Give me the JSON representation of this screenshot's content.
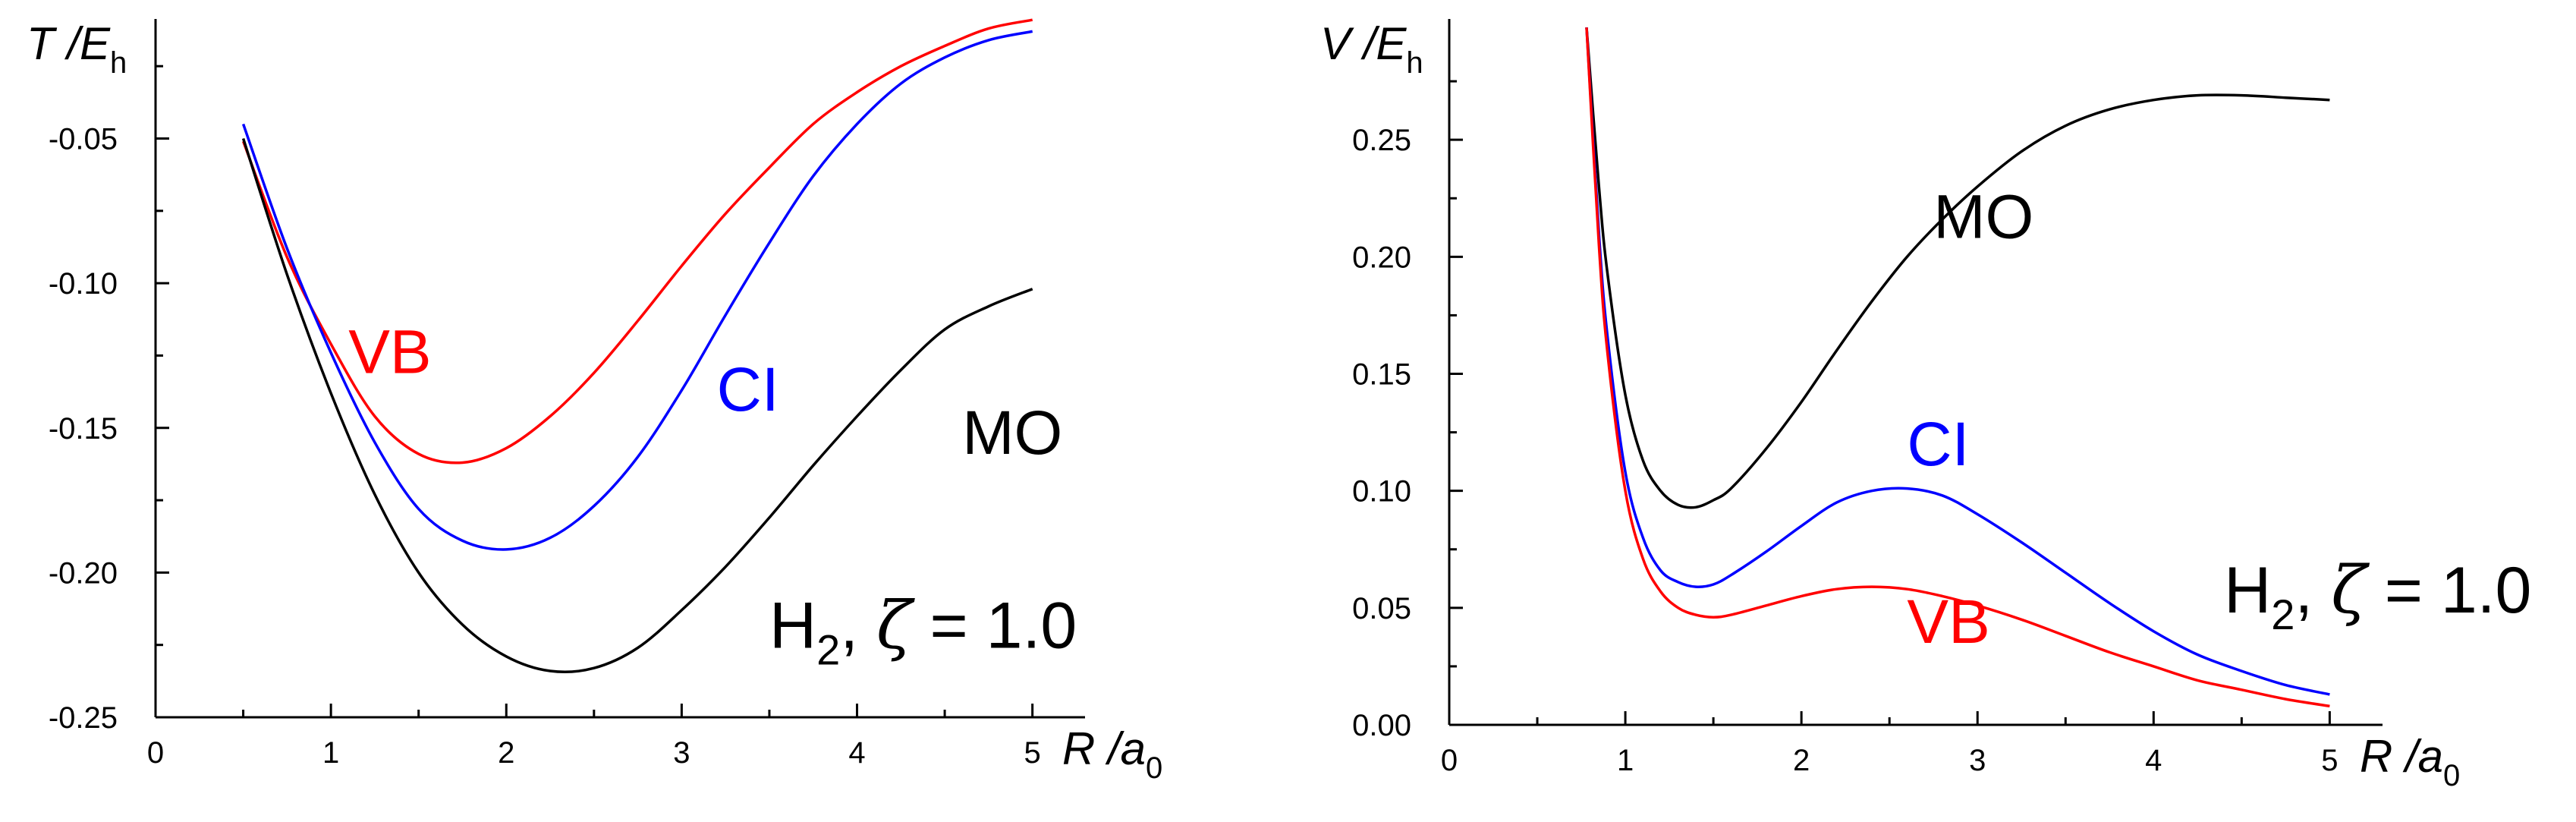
{
  "chart_data": [
    {
      "type": "line",
      "id": "kinetic",
      "xlabel": "R /a0",
      "x_axis": {
        "var": "R",
        "unit": "a",
        "unit_sub": "0"
      },
      "y_axis": {
        "var": "T",
        "unit": "E",
        "unit_sub": "h"
      },
      "xlim": [
        0,
        5.3
      ],
      "ylim": [
        -0.25,
        -0.01
      ],
      "x_major_ticks": [
        0,
        1,
        2,
        3,
        4,
        5
      ],
      "x_tick_labels": [
        "0",
        "1",
        "2",
        "3",
        "4",
        "5"
      ],
      "y_major_ticks": [
        -0.25,
        -0.2,
        -0.15,
        -0.1,
        -0.05
      ],
      "y_tick_labels": [
        "-0.25",
        "-0.20",
        "-0.15",
        "-0.10",
        "-0.05"
      ],
      "series": [
        {
          "name": "VB",
          "color": "#ff0000",
          "x": [
            0.5,
            0.75,
            1.0,
            1.25,
            1.5,
            1.75,
            2.0,
            2.25,
            2.5,
            2.75,
            3.0,
            3.25,
            3.5,
            3.75,
            4.0,
            4.25,
            4.5,
            4.75,
            5.0
          ],
          "y": [
            -0.051,
            -0.091,
            -0.121,
            -0.146,
            -0.159,
            -0.162,
            -0.157,
            -0.146,
            -0.131,
            -0.113,
            -0.094,
            -0.076,
            -0.06,
            -0.045,
            -0.034,
            -0.025,
            -0.018,
            -0.012,
            -0.009
          ]
        },
        {
          "name": "CI",
          "color": "#0000ff",
          "x": [
            0.5,
            0.75,
            1.0,
            1.25,
            1.5,
            1.75,
            2.0,
            2.25,
            2.5,
            2.75,
            3.0,
            3.25,
            3.5,
            3.75,
            4.0,
            4.25,
            4.5,
            4.75,
            5.0
          ],
          "y": [
            -0.045,
            -0.088,
            -0.124,
            -0.155,
            -0.178,
            -0.189,
            -0.192,
            -0.188,
            -0.177,
            -0.16,
            -0.137,
            -0.111,
            -0.086,
            -0.063,
            -0.045,
            -0.031,
            -0.022,
            -0.016,
            -0.013
          ]
        },
        {
          "name": "MO",
          "color": "#000000",
          "x": [
            0.5,
            0.75,
            1.0,
            1.25,
            1.5,
            1.75,
            2.0,
            2.25,
            2.5,
            2.75,
            3.0,
            3.25,
            3.5,
            3.75,
            4.0,
            4.25,
            4.5,
            4.75,
            5.0
          ],
          "y": [
            -0.05,
            -0.097,
            -0.138,
            -0.173,
            -0.2,
            -0.218,
            -0.229,
            -0.234,
            -0.233,
            -0.226,
            -0.213,
            -0.198,
            -0.181,
            -0.163,
            -0.146,
            -0.13,
            -0.116,
            -0.108,
            -0.102
          ]
        }
      ],
      "series_labels": [
        {
          "text": "VB",
          "x": 1.1,
          "y": -0.131,
          "color": "#ff0000"
        },
        {
          "text": "CI",
          "x": 3.2,
          "y": -0.144,
          "color": "#0000ff"
        },
        {
          "text": "MO",
          "x": 4.6,
          "y": -0.159,
          "color": "#000000"
        }
      ],
      "annotation": {
        "main": "H",
        "sub": "2",
        "sep": ",",
        "greek": "ζ",
        "value": "= 1.0",
        "x": 3.5,
        "y": -0.226
      }
    },
    {
      "type": "line",
      "id": "potential",
      "xlabel": "R /a0",
      "x_axis": {
        "var": "R",
        "unit": "a",
        "unit_sub": "0"
      },
      "y_axis": {
        "var": "V",
        "unit": "E",
        "unit_sub": "h"
      },
      "xlim": [
        0,
        5.3
      ],
      "ylim": [
        0,
        0.3
      ],
      "x_major_ticks": [
        0,
        1,
        2,
        3,
        4,
        5
      ],
      "x_tick_labels": [
        "0",
        "1",
        "2",
        "3",
        "4",
        "5"
      ],
      "y_major_ticks": [
        0.0,
        0.05,
        0.1,
        0.15,
        0.2,
        0.25
      ],
      "y_tick_labels": [
        "0.00",
        "0.05",
        "0.10",
        "0.15",
        "0.20",
        "0.25"
      ],
      "series": [
        {
          "name": "MO",
          "color": "#000000",
          "x": [
            0.78,
            0.85,
            0.9,
            1.0,
            1.1,
            1.2,
            1.3,
            1.4,
            1.5,
            1.6,
            1.8,
            2.0,
            2.2,
            2.4,
            2.6,
            2.8,
            3.0,
            3.25,
            3.5,
            3.75,
            4.0,
            4.25,
            4.5,
            4.75,
            5.0
          ],
          "y": [
            0.298,
            0.23,
            0.192,
            0.141,
            0.113,
            0.1,
            0.094,
            0.093,
            0.096,
            0.101,
            0.118,
            0.138,
            0.16,
            0.181,
            0.2,
            0.216,
            0.23,
            0.245,
            0.256,
            0.263,
            0.267,
            0.269,
            0.269,
            0.268,
            0.267
          ]
        },
        {
          "name": "CI",
          "color": "#0000ff",
          "x": [
            0.78,
            0.85,
            0.9,
            1.0,
            1.1,
            1.2,
            1.3,
            1.4,
            1.5,
            1.6,
            1.8,
            2.0,
            2.2,
            2.4,
            2.6,
            2.8,
            3.0,
            3.25,
            3.5,
            3.75,
            4.0,
            4.25,
            4.5,
            4.75,
            5.0
          ],
          "y": [
            0.298,
            0.21,
            0.165,
            0.108,
            0.08,
            0.066,
            0.061,
            0.059,
            0.06,
            0.064,
            0.074,
            0.085,
            0.095,
            0.1,
            0.101,
            0.098,
            0.09,
            0.078,
            0.065,
            0.052,
            0.04,
            0.03,
            0.023,
            0.017,
            0.013
          ]
        },
        {
          "name": "VB",
          "color": "#ff0000",
          "x": [
            0.78,
            0.85,
            0.9,
            1.0,
            1.1,
            1.2,
            1.3,
            1.4,
            1.5,
            1.6,
            1.8,
            2.0,
            2.2,
            2.4,
            2.6,
            2.8,
            3.0,
            3.25,
            3.5,
            3.75,
            4.0,
            4.25,
            4.5,
            4.75,
            5.0
          ],
          "y": [
            0.298,
            0.205,
            0.158,
            0.1,
            0.071,
            0.057,
            0.05,
            0.047,
            0.046,
            0.047,
            0.051,
            0.055,
            0.058,
            0.059,
            0.058,
            0.055,
            0.051,
            0.045,
            0.038,
            0.031,
            0.025,
            0.019,
            0.015,
            0.011,
            0.008
          ]
        }
      ],
      "series_labels": [
        {
          "text": "MO",
          "x": 2.75,
          "y": 0.208,
          "color": "#000000"
        },
        {
          "text": "CI",
          "x": 2.6,
          "y": 0.111,
          "color": "#0000ff"
        },
        {
          "text": "VB",
          "x": 2.6,
          "y": 0.035,
          "color": "#ff0000"
        }
      ],
      "annotation": {
        "main": "H",
        "sub": "2",
        "sep": ",",
        "greek": "ζ",
        "value": "= 1.0",
        "x": 4.4,
        "y": 0.048
      }
    }
  ]
}
